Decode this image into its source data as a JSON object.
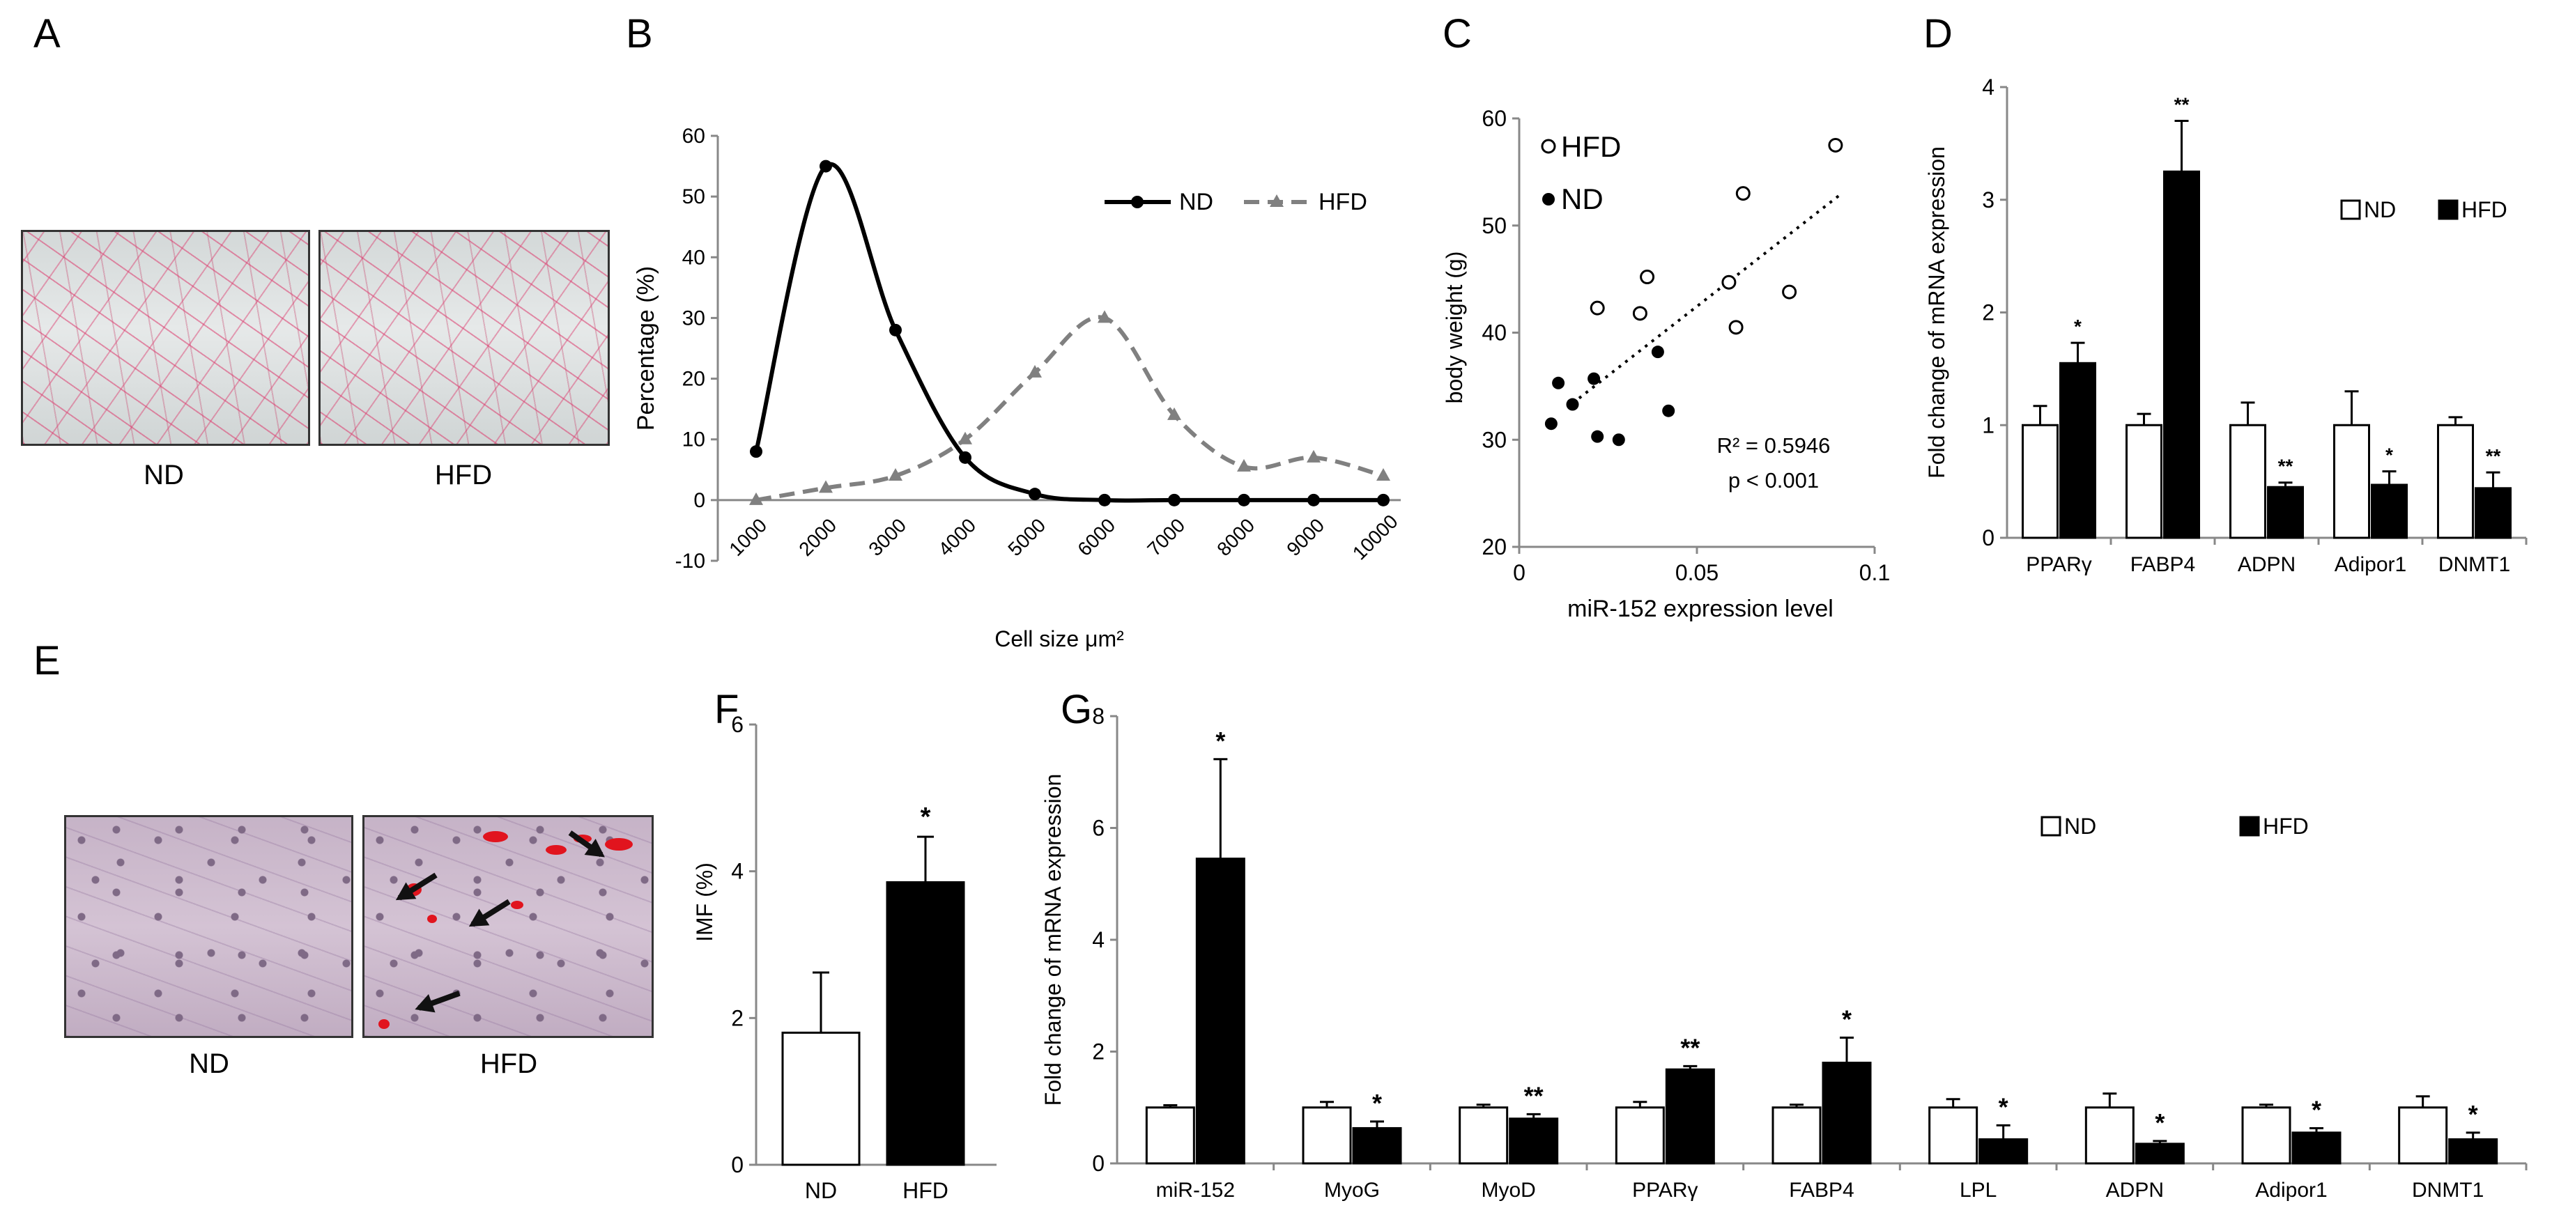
{
  "panel_labels": {
    "a": "A",
    "b": "B",
    "c": "C",
    "d": "D",
    "e": "E",
    "f": "F",
    "g": "G"
  },
  "panel_a": {
    "captions": [
      "ND",
      "HFD"
    ]
  },
  "panel_e": {
    "captions": [
      "ND",
      "HFD"
    ]
  },
  "colors": {
    "nd_fill": "#ffffff",
    "hfd_fill": "#000000",
    "hfd_line": "#808080",
    "adipocyte_stain": "#dc3c6e",
    "lipid": "#e1141e"
  },
  "chart_data": [
    {
      "panel": "B",
      "type": "line",
      "xlabel": "Cell size μm²",
      "ylabel": "Percentage (%)",
      "ylim": [
        -10,
        60
      ],
      "yticks": [
        "-10",
        "0",
        "10",
        "20",
        "30",
        "40",
        "50",
        "60"
      ],
      "categories": [
        "1000",
        "2000",
        "3000",
        "4000",
        "5000",
        "6000",
        "7000",
        "8000",
        "9000",
        "10000"
      ],
      "legend_position": "top-right",
      "series": [
        {
          "name": "ND",
          "values": [
            8,
            55,
            28,
            7,
            1,
            0,
            0,
            0,
            0,
            0
          ],
          "style": "solid-circle"
        },
        {
          "name": "HFD",
          "values": [
            0,
            2,
            4,
            10,
            21,
            30,
            14,
            5.5,
            7,
            4
          ],
          "style": "dashed-triangle"
        }
      ]
    },
    {
      "panel": "C",
      "type": "scatter",
      "xlabel": "miR-152 expression level",
      "ylabel": "body weight (g)",
      "xlim": [
        0,
        0.1
      ],
      "ylim": [
        20,
        60
      ],
      "xticks": [
        "0",
        "0.05",
        "0.1"
      ],
      "yticks": [
        "20",
        "30",
        "40",
        "50",
        "60"
      ],
      "series": [
        {
          "name": "HFD",
          "marker": "open-circle",
          "points": [
            [
              0.022,
              42.3
            ],
            [
              0.034,
              41.8
            ],
            [
              0.036,
              45.2
            ],
            [
              0.059,
              44.7
            ],
            [
              0.061,
              40.5
            ],
            [
              0.063,
              53
            ],
            [
              0.076,
              43.8
            ],
            [
              0.089,
              57.5
            ]
          ]
        },
        {
          "name": "ND",
          "marker": "filled-circle",
          "points": [
            [
              0.009,
              31.5
            ],
            [
              0.011,
              35.3
            ],
            [
              0.015,
              33.3
            ],
            [
              0.021,
              35.7
            ],
            [
              0.022,
              30.3
            ],
            [
              0.028,
              30
            ],
            [
              0.039,
              38.2
            ],
            [
              0.042,
              32.7
            ]
          ]
        }
      ],
      "trendline": {
        "x": [
          0.015,
          0.09
        ],
        "y": [
          33.4,
          52.8
        ]
      },
      "annotations": [
        "R² = 0.5946",
        "p < 0.001"
      ]
    },
    {
      "panel": "D",
      "type": "bar",
      "ylabel": "Fold change of mRNA expression",
      "ylim": [
        0,
        4
      ],
      "yticks": [
        "0",
        "1",
        "2",
        "3",
        "4"
      ],
      "categories": [
        "PPARγ",
        "FABP4",
        "ADPN",
        "Adipor1",
        "DNMT1"
      ],
      "legend_position": "top-right",
      "series": [
        {
          "name": "ND",
          "values": [
            1,
            1,
            1,
            1,
            1
          ],
          "errors": [
            0.17,
            0.1,
            0.2,
            0.3,
            0.07
          ]
        },
        {
          "name": "HFD",
          "values": [
            1.55,
            3.25,
            0.45,
            0.47,
            0.44
          ],
          "errors": [
            0.18,
            0.45,
            0.04,
            0.12,
            0.14
          ]
        }
      ],
      "significance": [
        "*",
        "**",
        "**",
        "*",
        "**"
      ]
    },
    {
      "panel": "F",
      "type": "bar",
      "ylabel": "IMF (%)",
      "ylim": [
        0,
        6
      ],
      "yticks": [
        "0",
        "2",
        "4",
        "6"
      ],
      "categories": [
        "ND",
        "HFD"
      ],
      "values": [
        1.8,
        3.85
      ],
      "errors": [
        0.82,
        0.62
      ],
      "significance": [
        "",
        "*"
      ]
    },
    {
      "panel": "G",
      "type": "bar",
      "ylabel": "Fold change of mRNA expression",
      "ylim": [
        0,
        8
      ],
      "yticks": [
        "0",
        "2",
        "4",
        "6",
        "8"
      ],
      "categories": [
        "miR-152",
        "MyoG",
        "MyoD",
        "PPARγ",
        "FABP4",
        "LPL",
        "ADPN",
        "Adipor1",
        "DNMT1"
      ],
      "legend_position": "top-right",
      "series": [
        {
          "name": "ND",
          "values": [
            1,
            1,
            1,
            1,
            1,
            1,
            1,
            1,
            1
          ],
          "errors": [
            0.04,
            0.1,
            0.05,
            0.1,
            0.05,
            0.15,
            0.25,
            0.05,
            0.2
          ]
        },
        {
          "name": "HFD",
          "values": [
            5.45,
            0.63,
            0.8,
            1.68,
            1.8,
            0.43,
            0.35,
            0.55,
            0.43
          ],
          "errors": [
            1.78,
            0.12,
            0.08,
            0.06,
            0.45,
            0.25,
            0.05,
            0.08,
            0.12
          ]
        }
      ],
      "significance": [
        "*",
        "*",
        "**",
        "**",
        "*",
        "*",
        "*",
        "*",
        "*"
      ]
    }
  ]
}
